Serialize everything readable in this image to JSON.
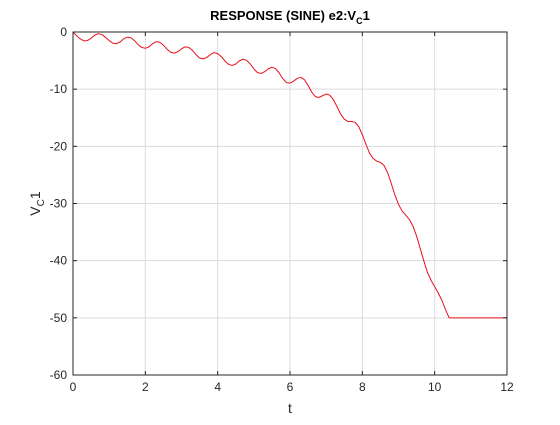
{
  "chart_data": {
    "type": "line",
    "title": "RESPONSE (SINE) e2:V",
    "title_subscript": "C",
    "title_suffix": "1",
    "xlabel": "t",
    "ylabel": "V",
    "ylabel_subscript": "C",
    "ylabel_suffix": "1",
    "xlim": [
      0,
      12
    ],
    "ylim": [
      -60,
      0
    ],
    "xticks": [
      0,
      2,
      4,
      6,
      8,
      10,
      12
    ],
    "yticks": [
      0,
      -10,
      -20,
      -30,
      -40,
      -50,
      -60
    ],
    "grid": true,
    "series": [
      {
        "color": "#e8101a",
        "x": [
          0.0,
          0.1,
          0.2,
          0.3,
          0.4,
          0.5,
          0.6,
          0.7,
          0.8,
          0.9,
          1.0,
          1.1,
          1.2,
          1.3,
          1.4,
          1.5,
          1.6,
          1.7,
          1.8,
          1.9,
          2.0,
          2.1,
          2.2,
          2.3,
          2.4,
          2.5,
          2.6,
          2.7,
          2.8,
          2.9,
          3.0,
          3.1,
          3.2,
          3.3,
          3.4,
          3.5,
          3.6,
          3.7,
          3.8,
          3.9,
          4.0,
          4.1,
          4.2,
          4.3,
          4.4,
          4.5,
          4.6,
          4.7,
          4.8,
          4.9,
          5.0,
          5.1,
          5.2,
          5.3,
          5.4,
          5.5,
          5.6,
          5.7,
          5.8,
          5.9,
          6.0,
          6.1,
          6.2,
          6.3,
          6.4,
          6.5,
          6.6,
          6.7,
          6.8,
          6.9,
          7.0,
          7.1,
          7.2,
          7.3,
          7.4,
          7.5,
          7.6,
          7.7,
          7.8,
          7.9,
          8.0,
          8.1,
          8.2,
          8.3,
          8.4,
          8.5,
          8.6,
          8.7,
          8.8,
          8.9,
          9.0,
          9.1,
          9.2,
          9.3,
          9.4,
          9.5,
          9.6,
          9.7,
          9.8,
          9.9,
          10.0,
          10.1,
          10.2,
          10.3,
          10.4,
          10.5,
          10.6,
          10.7,
          10.8,
          10.9,
          11.0,
          11.1,
          11.2,
          11.3,
          11.4,
          11.5,
          11.6,
          11.7,
          11.8,
          11.9,
          12.0
        ],
        "y": [
          0.0,
          -0.65,
          -1.2,
          -1.55,
          -1.5,
          -1.1,
          -0.55,
          -0.3,
          -0.45,
          -0.95,
          -1.5,
          -1.95,
          -2.05,
          -1.75,
          -1.2,
          -0.9,
          -1.0,
          -1.5,
          -2.2,
          -2.7,
          -2.85,
          -2.6,
          -2.05,
          -1.7,
          -1.8,
          -2.3,
          -3.0,
          -3.55,
          -3.7,
          -3.45,
          -2.95,
          -2.6,
          -2.7,
          -3.2,
          -3.95,
          -4.55,
          -4.7,
          -4.45,
          -3.95,
          -3.6,
          -3.75,
          -4.3,
          -5.05,
          -5.65,
          -5.85,
          -5.6,
          -5.05,
          -4.75,
          -4.95,
          -5.6,
          -6.45,
          -7.1,
          -7.25,
          -6.95,
          -6.45,
          -6.15,
          -6.4,
          -7.15,
          -8.15,
          -8.85,
          -8.95,
          -8.6,
          -8.1,
          -7.95,
          -8.35,
          -9.35,
          -10.5,
          -11.3,
          -11.45,
          -11.15,
          -10.85,
          -11.05,
          -11.85,
          -13.05,
          -14.35,
          -15.25,
          -15.65,
          -15.65,
          -15.8,
          -16.55,
          -17.95,
          -19.65,
          -21.2,
          -22.15,
          -22.6,
          -22.8,
          -23.35,
          -24.6,
          -26.5,
          -28.5,
          -30.15,
          -31.3,
          -32.05,
          -32.8,
          -33.95,
          -35.7,
          -37.85,
          -40.05,
          -42.05,
          -43.45,
          -44.55,
          -45.65,
          -46.95,
          -48.55,
          -50.0,
          -50.0,
          -50.0,
          -50.0,
          -50.0,
          -50.0,
          -50.0,
          -50.0,
          -50.0,
          -50.0,
          -50.0,
          -50.0,
          -50.0,
          -50.0,
          -50.0,
          -50.0,
          -50.0
        ]
      }
    ]
  }
}
